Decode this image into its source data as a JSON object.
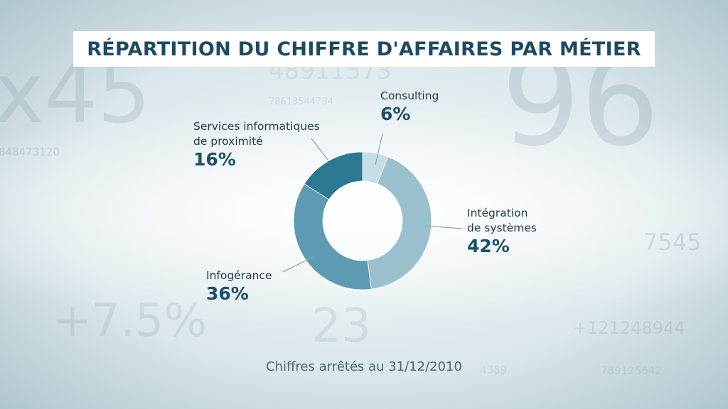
{
  "title": "RÉPARTITION DU CHIFFRE D'AFFAIRES PAR MÉTIER",
  "footnote": "Chiffres arrêtés au 31/12/2010",
  "background_numbers": [
    "x45",
    "96",
    "48911573",
    "78613544734",
    "848473120",
    "7545",
    "+7.5%",
    "23",
    "+121248944",
    "789125642",
    "4389"
  ],
  "colors": {
    "title": "#1d4a63",
    "consulting": "#c5dde5",
    "integration": "#9ac0ce",
    "infogerance": "#5d9bb2",
    "services": "#2a7892"
  },
  "chart_data": {
    "type": "pie",
    "donut": true,
    "title": "RÉPARTITION DU CHIFFRE D'AFFAIRES PAR MÉTIER",
    "slices": [
      {
        "label": "Consulting",
        "value": 6,
        "display": "6%"
      },
      {
        "label": "Intégration de systèmes",
        "value": 42,
        "display": "42%"
      },
      {
        "label": "Infogérance",
        "value": 36,
        "display": "36%"
      },
      {
        "label": "Services informatiques de proximité",
        "value": 16,
        "display": "16%"
      }
    ]
  },
  "labels": {
    "consulting": {
      "name": "Consulting",
      "pct": "6%"
    },
    "integration": {
      "line1": "Intégration",
      "line2": "de systèmes",
      "pct": "42%"
    },
    "infogerance": {
      "name": "Infogérance",
      "pct": "36%"
    },
    "services": {
      "line1": "Services informatiques",
      "line2": "de proximité",
      "pct": "16%"
    }
  }
}
